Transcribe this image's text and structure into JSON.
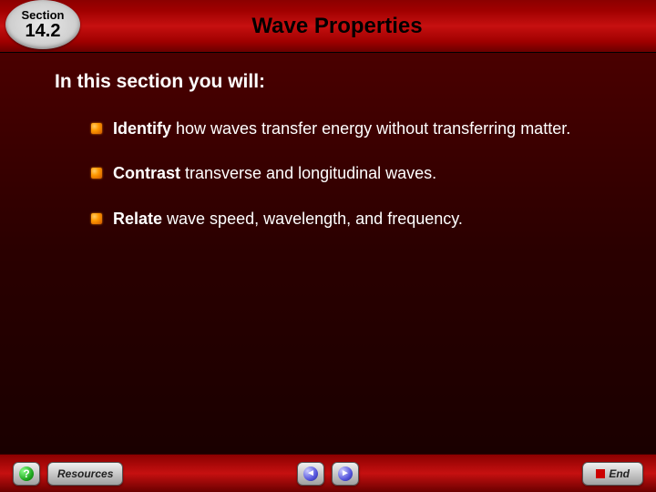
{
  "header": {
    "section_label": "Section",
    "section_number": "14.2",
    "title": "Wave Properties"
  },
  "content": {
    "intro": "In this section you will:",
    "objectives": [
      {
        "bold": "Identify",
        "rest": " how waves transfer energy without transferring matter."
      },
      {
        "bold": "Contrast",
        "rest": " transverse and longitudinal waves."
      },
      {
        "bold": "Relate",
        "rest": " wave speed, wavelength, and frequency."
      }
    ]
  },
  "footer": {
    "help": "?",
    "resources": "Resources",
    "prev": "◄",
    "next": "►",
    "end": "End"
  },
  "colors": {
    "header_gradient": [
      "#8b0000",
      "#c61010",
      "#6b0000"
    ],
    "content_gradient": [
      "#4a0000",
      "#1a0000"
    ],
    "bullet": "#ff9900",
    "badge": "#d8d8d8",
    "footer_btn": "#c8c8c8",
    "text": "#ffffff"
  }
}
